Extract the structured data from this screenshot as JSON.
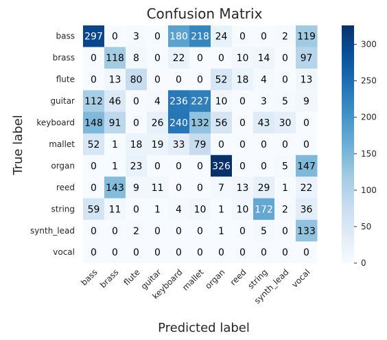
{
  "chart_data": {
    "type": "heatmap",
    "title": "Confusion Matrix",
    "xlabel": "Predicted label",
    "ylabel": "True label",
    "x_categories": [
      "bass",
      "brass",
      "flute",
      "guitar",
      "keyboard",
      "mallet",
      "organ",
      "reed",
      "string",
      "synth_lead",
      "vocal"
    ],
    "y_categories": [
      "bass",
      "brass",
      "flute",
      "guitar",
      "keyboard",
      "mallet",
      "organ",
      "reed",
      "string",
      "synth_lead",
      "vocal"
    ],
    "values": [
      [
        297,
        0,
        3,
        0,
        180,
        218,
        24,
        0,
        0,
        2,
        119
      ],
      [
        0,
        118,
        8,
        0,
        22,
        0,
        0,
        10,
        14,
        0,
        97
      ],
      [
        0,
        13,
        80,
        0,
        0,
        0,
        52,
        18,
        4,
        0,
        13
      ],
      [
        112,
        46,
        0,
        4,
        236,
        227,
        10,
        0,
        3,
        5,
        9
      ],
      [
        148,
        91,
        0,
        26,
        240,
        132,
        56,
        0,
        43,
        30,
        0
      ],
      [
        52,
        1,
        18,
        19,
        33,
        79,
        0,
        0,
        0,
        0,
        0
      ],
      [
        0,
        1,
        23,
        0,
        0,
        0,
        326,
        0,
        0,
        5,
        147
      ],
      [
        0,
        143,
        9,
        11,
        0,
        0,
        7,
        13,
        29,
        1,
        22
      ],
      [
        59,
        11,
        0,
        1,
        4,
        10,
        1,
        10,
        172,
        2,
        36
      ],
      [
        0,
        0,
        2,
        0,
        0,
        0,
        1,
        0,
        5,
        0,
        133
      ],
      [
        0,
        0,
        0,
        0,
        0,
        0,
        0,
        0,
        0,
        0,
        0
      ]
    ],
    "colorbar": {
      "colormap": "Blues",
      "range": [
        0,
        326
      ],
      "ticks": [
        0,
        50,
        100,
        150,
        200,
        250,
        300
      ]
    },
    "grid": false,
    "text_threshold": 163
  }
}
